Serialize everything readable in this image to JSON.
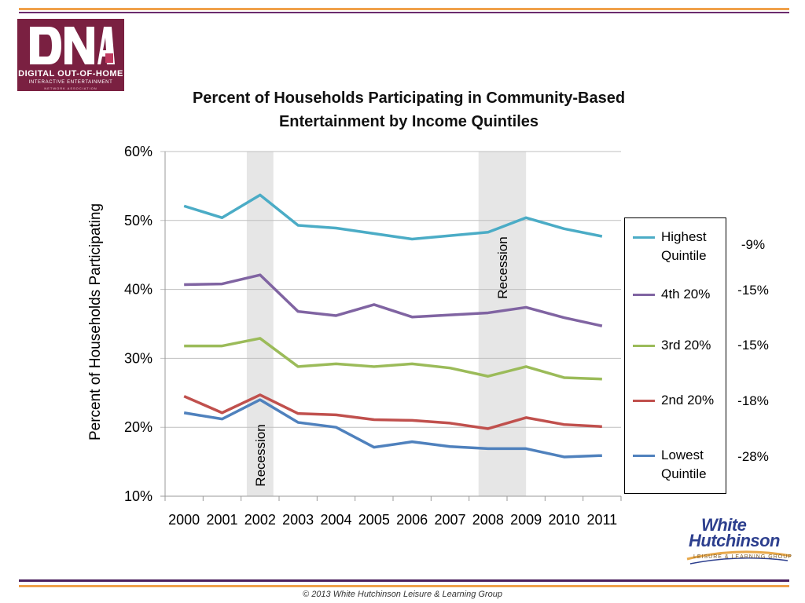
{
  "logo": {
    "mark": "DNA",
    "line1": "DIGITAL OUT-OF-HOME",
    "line2": "INTERACTIVE ENTERTAINMENT",
    "line3": "NETWORK ASSOCIATION"
  },
  "colors": {
    "rule_orange": "#f0a14a",
    "rule_purple": "#4b1f5e",
    "recession_band": "#e6e6e6",
    "gridline": "#bfbfbf"
  },
  "chart_data": {
    "type": "line",
    "title": "Percent of Households Participating in Community-Based Entertainment by Income Quintiles",
    "title_lines": [
      "Percent of Households Participating in Community-Based",
      "Entertainment by Income Quintiles"
    ],
    "ylabel": "Percent of Households Participating",
    "xlabel": "",
    "ylim": [
      10,
      60
    ],
    "yticks": [
      "10%",
      "20%",
      "30%",
      "40%",
      "50%",
      "60%"
    ],
    "ytick_values": [
      10,
      20,
      30,
      40,
      50,
      60
    ],
    "grid": "horizontal",
    "categories": [
      "2000",
      "2001",
      "2002",
      "2003",
      "2004",
      "2005",
      "2006",
      "2007",
      "2008",
      "2009",
      "2010",
      "2011"
    ],
    "series": [
      {
        "name": "Highest Quintile",
        "color": "#4bacc6",
        "change": "-9%",
        "values": [
          52.1,
          50.4,
          53.7,
          49.3,
          48.9,
          48.1,
          47.3,
          47.8,
          48.3,
          50.4,
          48.8,
          47.7
        ]
      },
      {
        "name": "4th 20%",
        "color": "#8064a2",
        "change": "-15%",
        "values": [
          40.7,
          40.8,
          42.1,
          36.8,
          36.2,
          37.8,
          36.0,
          36.3,
          36.6,
          37.4,
          35.9,
          34.7
        ]
      },
      {
        "name": "3rd 20%",
        "color": "#9bbb59",
        "change": "-15%",
        "values": [
          31.8,
          31.8,
          32.9,
          28.8,
          29.2,
          28.8,
          29.2,
          28.6,
          27.4,
          28.8,
          27.2,
          27.0
        ]
      },
      {
        "name": "2nd 20%",
        "color": "#c0504d",
        "change": "-18%",
        "values": [
          24.5,
          22.1,
          24.7,
          22.0,
          21.8,
          21.1,
          21.0,
          20.6,
          19.8,
          21.4,
          20.4,
          20.1
        ]
      },
      {
        "name": "Lowest Quintile",
        "color": "#4f81bd",
        "change": "-28%",
        "values": [
          22.1,
          21.2,
          24.0,
          20.7,
          20.0,
          17.1,
          17.9,
          17.2,
          16.9,
          16.9,
          15.7,
          15.9
        ]
      }
    ],
    "annotations": [
      {
        "label": "Recession",
        "x_start": 2001.65,
        "x_end": 2002.35,
        "label_position": "bottom"
      },
      {
        "label": "Recession",
        "x_start": 2007.75,
        "x_end": 2009.0,
        "label_position": "top"
      }
    ],
    "legend_position": "right"
  },
  "logo_wh": {
    "line1": "White",
    "line2": "Hutchinson",
    "line3": "LEISURE & LEARNING GROUP"
  },
  "footer": "© 2013 White Hutchinson Leisure & Learning Group"
}
